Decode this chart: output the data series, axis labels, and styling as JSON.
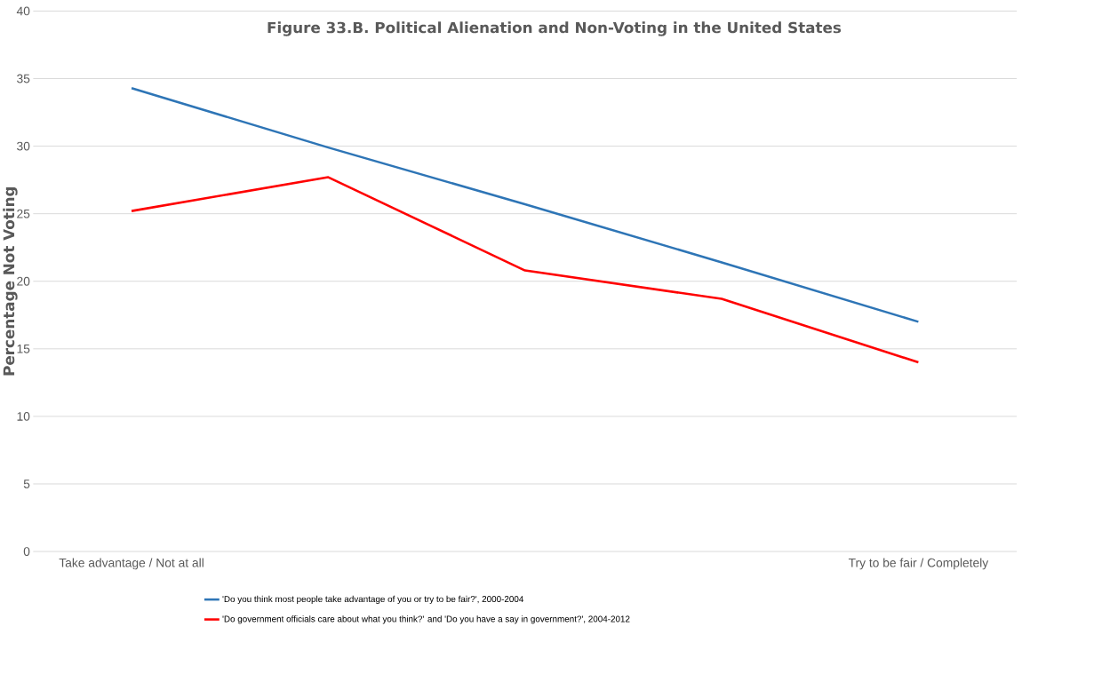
{
  "chart_data": {
    "type": "line",
    "title": "Figure 33.B. Political Alienation and Non-Voting in the United States",
    "ylabel": "Percentage Not Voting",
    "categories": [
      "Take advantage / Not at all",
      null,
      null,
      null,
      "Try to be fair / Completely"
    ],
    "series": [
      {
        "name": "'Do you think most people take advantage of you or try to be fair?', 2000-2004",
        "color": "#2e75b6",
        "values": [
          34.3,
          29.9,
          25.7,
          21.4,
          17.0
        ]
      },
      {
        "name": "'Do government officials care about what you think?' and 'Do you have a say in government?', 2004-2012",
        "color": "#ff0000",
        "values": [
          25.2,
          27.7,
          20.8,
          18.7,
          14.0
        ]
      }
    ],
    "ylim": [
      0,
      40
    ],
    "yticks": [
      0,
      5,
      10,
      15,
      20,
      25,
      30,
      35,
      40
    ],
    "grid": "y",
    "legend": "bottom",
    "marker": "none",
    "line_style": "solid"
  }
}
